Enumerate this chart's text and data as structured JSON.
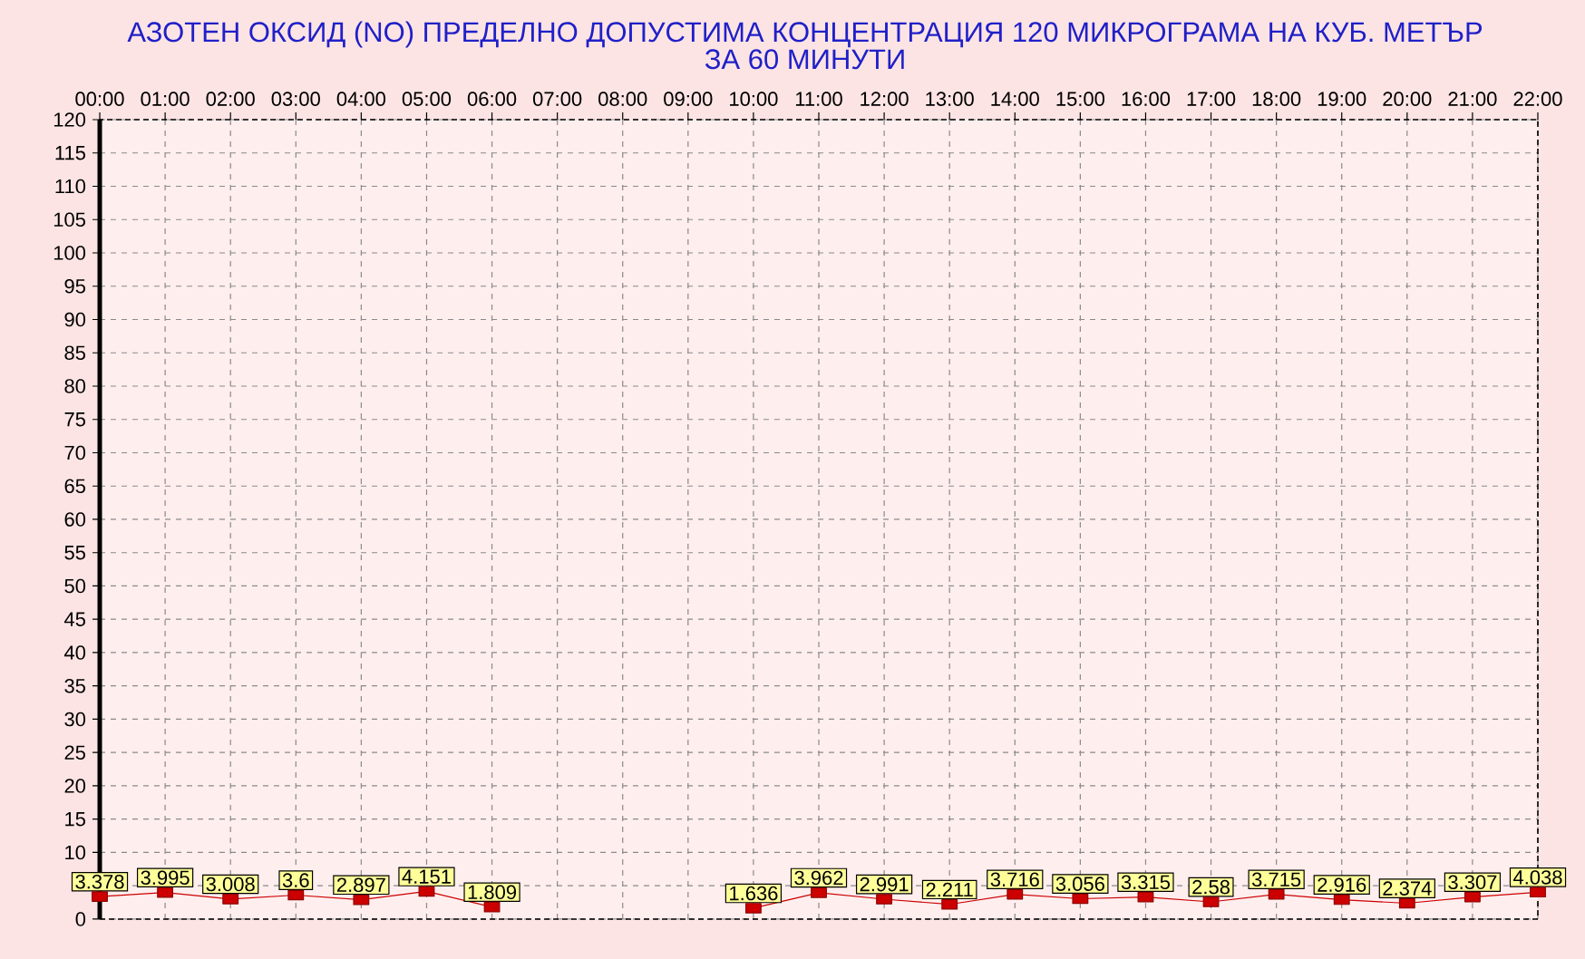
{
  "chart_data": {
    "type": "line",
    "title": "АЗОТЕН ОКСИД   (NO)     ПРЕДЕЛНО ДОПУСТИМА КОНЦЕНТРАЦИЯ 120 МИКРОГРАМА  НА КУБ. МЕТЪР",
    "subtitle": "ЗА 60 МИНУТИ",
    "categories": [
      "00:00",
      "01:00",
      "02:00",
      "03:00",
      "04:00",
      "05:00",
      "06:00",
      "07:00",
      "08:00",
      "09:00",
      "10:00",
      "11:00",
      "12:00",
      "13:00",
      "14:00",
      "15:00",
      "16:00",
      "17:00",
      "18:00",
      "19:00",
      "20:00",
      "21:00",
      "22:00"
    ],
    "series": [
      {
        "color": "#cc0000",
        "values": [
          3.378,
          3.995,
          3.008,
          3.6,
          2.897,
          4.151,
          1.809,
          null,
          null,
          null,
          1.636,
          3.962,
          2.991,
          2.211,
          3.716,
          3.056,
          3.315,
          2.58,
          3.715,
          2.916,
          2.374,
          3.307,
          4.038
        ]
      }
    ],
    "ylim": [
      0,
      120
    ],
    "yticks": [
      0,
      {
        "value": 5,
        "label": null
      },
      10,
      15,
      20,
      25,
      30,
      35,
      40,
      45,
      50,
      55,
      60,
      65,
      70,
      75,
      80,
      85,
      90,
      95,
      100,
      105,
      110,
      115,
      120
    ],
    "grid": true,
    "marker": "square",
    "line_style": "solid",
    "data_labels": true
  }
}
